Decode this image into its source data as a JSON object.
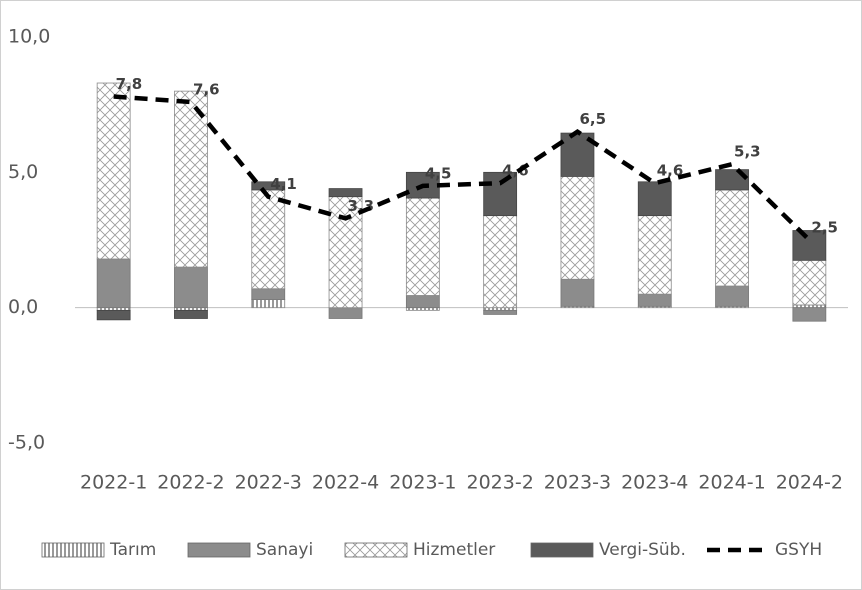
{
  "chart_data": {
    "type": "bar",
    "stacked": true,
    "categories": [
      "2022-1",
      "2022-2",
      "2022-3",
      "2022-4",
      "2023-1",
      "2023-2",
      "2023-3",
      "2023-4",
      "2024-1",
      "2024-2"
    ],
    "series": [
      {
        "name": "Tarım",
        "color": "#ffffff",
        "values": [
          -0.1,
          -0.1,
          0.3,
          0,
          -0.1,
          -0.1,
          0.05,
          0.05,
          0.05,
          0.1
        ]
      },
      {
        "name": "Sanayi",
        "color": "#8c8c8c",
        "values": [
          1.8,
          1.5,
          0.4,
          -0.4,
          0.45,
          -0.15,
          1.0,
          0.45,
          0.75,
          -0.5
        ]
      },
      {
        "name": "Hizmetler",
        "color": "#ffffff",
        "values": [
          6.5,
          6.5,
          3.65,
          4.1,
          3.6,
          3.4,
          3.8,
          2.9,
          3.55,
          1.65
        ]
      },
      {
        "name": "Vergi-Süb.",
        "color": "#5a5a5a",
        "values": [
          -0.35,
          -0.3,
          0.3,
          0.3,
          0.95,
          1.6,
          1.6,
          1.25,
          0.75,
          1.1
        ]
      },
      {
        "name": "GSYH",
        "type": "line",
        "color": "#000000",
        "values": [
          7.8,
          7.6,
          4.1,
          3.3,
          4.5,
          4.6,
          6.5,
          4.6,
          5.3,
          2.5
        ],
        "value_labels": [
          "7,8",
          "7,6",
          "4,1",
          "3,3",
          "4,5",
          "4,6",
          "6,5",
          "4,6",
          "5,3",
          "2,5"
        ]
      }
    ],
    "ylim": [
      -5,
      10
    ],
    "yticks": [
      {
        "value": -5,
        "label": "-5,0"
      },
      {
        "value": 0,
        "label": "0,0"
      },
      {
        "value": 5,
        "label": "5,0"
      },
      {
        "value": 10,
        "label": "10,0"
      }
    ],
    "grid": false,
    "legend": "bottom"
  }
}
